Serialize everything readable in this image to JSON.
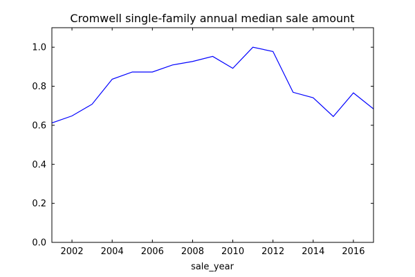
{
  "chart_data": {
    "type": "line",
    "title": "Cromwell single-family annual median sale amount",
    "xlabel": "sale_year",
    "ylabel": "",
    "xlim": [
      2001,
      2017
    ],
    "ylim": [
      0.0,
      1.1
    ],
    "xticks": [
      2002,
      2004,
      2006,
      2008,
      2010,
      2012,
      2014,
      2016
    ],
    "xtick_labels": [
      "2002",
      "2004",
      "2006",
      "2008",
      "2010",
      "2012",
      "2014",
      "2016"
    ],
    "yticks": [
      0.0,
      0.2,
      0.4,
      0.6,
      0.8,
      1.0
    ],
    "ytick_labels": [
      "0.0",
      "0.2",
      "0.4",
      "0.6",
      "0.8",
      "1.0"
    ],
    "grid": false,
    "series": [
      {
        "color": "#0000ff",
        "x": [
          2001,
          2002,
          2003,
          2004,
          2005,
          2006,
          2007,
          2008,
          2009,
          2010,
          2011,
          2012,
          2013,
          2014,
          2015,
          2016,
          2017
        ],
        "y": [
          0.612,
          0.648,
          0.708,
          0.836,
          0.873,
          0.873,
          0.909,
          0.927,
          0.953,
          0.892,
          1.0,
          0.978,
          0.769,
          0.741,
          0.645,
          0.766,
          0.684
        ]
      }
    ]
  }
}
